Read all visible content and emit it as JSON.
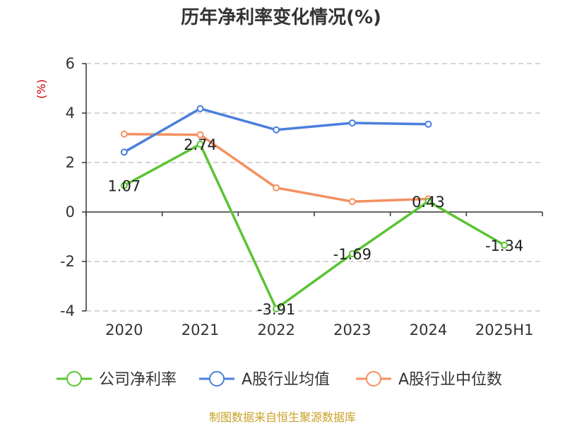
{
  "chart_data": {
    "type": "line",
    "title": "历年净利率变化情况(%)",
    "ylabel": "(%)",
    "xlabel": "",
    "categories": [
      "2020",
      "2021",
      "2022",
      "2023",
      "2024",
      "2025H1"
    ],
    "ylim": [
      -4,
      6
    ],
    "yticks": [
      6,
      4,
      2,
      0,
      -2,
      -4
    ],
    "grid": true,
    "legend_position": "bottom",
    "series": [
      {
        "name": "公司净利率",
        "color": "#5ac432",
        "values": [
          1.07,
          2.74,
          -3.91,
          -1.69,
          0.43,
          -1.34
        ],
        "data_labels": [
          "1.07",
          "2.74",
          "-3.91",
          "-1.69",
          "0.43",
          "-1.34"
        ]
      },
      {
        "name": "A股行业均值",
        "color": "#4b7fdc",
        "values": [
          2.42,
          4.18,
          3.32,
          3.6,
          3.55,
          null
        ]
      },
      {
        "name": "A股行业中位数",
        "color": "#f49060",
        "values": [
          3.15,
          3.12,
          0.98,
          0.42,
          0.53,
          null
        ]
      }
    ]
  },
  "colors": {
    "ylabel": "#cc0000",
    "source": "#c9a227",
    "axis": "#333333",
    "grid": "#c8c8c8"
  },
  "source": "制图数据来自恒生聚源数据库"
}
